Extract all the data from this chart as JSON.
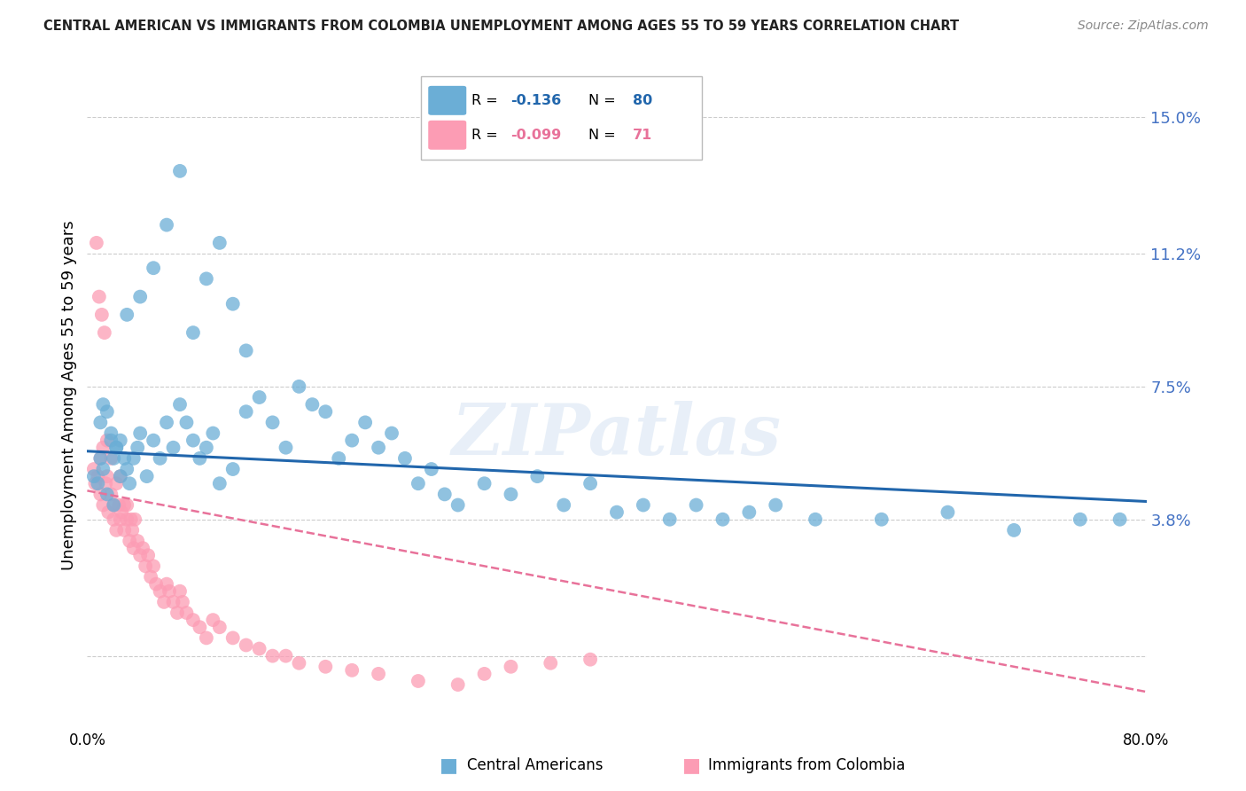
{
  "title": "CENTRAL AMERICAN VS IMMIGRANTS FROM COLOMBIA UNEMPLOYMENT AMONG AGES 55 TO 59 YEARS CORRELATION CHART",
  "source": "Source: ZipAtlas.com",
  "ylabel": "Unemployment Among Ages 55 to 59 years",
  "xlim": [
    0.0,
    0.8
  ],
  "ylim": [
    -0.02,
    0.165
  ],
  "ytick_vals": [
    0.0,
    0.038,
    0.075,
    0.112,
    0.15
  ],
  "ytick_labels": [
    "",
    "3.8%",
    "7.5%",
    "11.2%",
    "15.0%"
  ],
  "xtick_vals": [
    0.0,
    0.1,
    0.2,
    0.3,
    0.4,
    0.5,
    0.6,
    0.7,
    0.8
  ],
  "xtick_labels": [
    "0.0%",
    "",
    "",
    "",
    "",
    "",
    "",
    "",
    "80.0%"
  ],
  "watermark": "ZIPatlas",
  "blue_color": "#6baed6",
  "pink_color": "#fc9cb4",
  "blue_line_color": "#2166ac",
  "pink_line_color": "#e8729a",
  "title_color": "#222222",
  "source_color": "#888888",
  "tick_color": "#4472C4",
  "grid_color": "#cccccc",
  "blue_N": 80,
  "pink_N": 71,
  "blue_line_x0": 0.0,
  "blue_line_y0": 0.057,
  "blue_line_x1": 0.8,
  "blue_line_y1": 0.043,
  "pink_line_x0": 0.0,
  "pink_line_y0": 0.046,
  "pink_line_x1": 0.8,
  "pink_line_y1": -0.01,
  "blue_scatter_x": [
    0.005,
    0.008,
    0.01,
    0.012,
    0.015,
    0.018,
    0.02,
    0.022,
    0.025,
    0.028,
    0.01,
    0.012,
    0.015,
    0.018,
    0.02,
    0.022,
    0.025,
    0.03,
    0.032,
    0.035,
    0.038,
    0.04,
    0.045,
    0.05,
    0.055,
    0.06,
    0.065,
    0.07,
    0.075,
    0.08,
    0.085,
    0.09,
    0.095,
    0.1,
    0.11,
    0.12,
    0.13,
    0.14,
    0.15,
    0.16,
    0.17,
    0.18,
    0.19,
    0.2,
    0.21,
    0.22,
    0.23,
    0.24,
    0.25,
    0.26,
    0.27,
    0.28,
    0.3,
    0.32,
    0.34,
    0.36,
    0.38,
    0.4,
    0.42,
    0.44,
    0.46,
    0.48,
    0.5,
    0.52,
    0.55,
    0.6,
    0.65,
    0.7,
    0.75,
    0.78,
    0.03,
    0.04,
    0.05,
    0.06,
    0.07,
    0.08,
    0.09,
    0.1,
    0.11,
    0.12
  ],
  "blue_scatter_y": [
    0.05,
    0.048,
    0.055,
    0.052,
    0.045,
    0.06,
    0.042,
    0.058,
    0.05,
    0.055,
    0.065,
    0.07,
    0.068,
    0.062,
    0.055,
    0.058,
    0.06,
    0.052,
    0.048,
    0.055,
    0.058,
    0.062,
    0.05,
    0.06,
    0.055,
    0.065,
    0.058,
    0.07,
    0.065,
    0.06,
    0.055,
    0.058,
    0.062,
    0.048,
    0.052,
    0.068,
    0.072,
    0.065,
    0.058,
    0.075,
    0.07,
    0.068,
    0.055,
    0.06,
    0.065,
    0.058,
    0.062,
    0.055,
    0.048,
    0.052,
    0.045,
    0.042,
    0.048,
    0.045,
    0.05,
    0.042,
    0.048,
    0.04,
    0.042,
    0.038,
    0.042,
    0.038,
    0.04,
    0.042,
    0.038,
    0.038,
    0.04,
    0.035,
    0.038,
    0.038,
    0.095,
    0.1,
    0.108,
    0.12,
    0.135,
    0.09,
    0.105,
    0.115,
    0.098,
    0.085
  ],
  "pink_scatter_x": [
    0.005,
    0.006,
    0.008,
    0.01,
    0.01,
    0.012,
    0.012,
    0.014,
    0.015,
    0.015,
    0.016,
    0.018,
    0.018,
    0.02,
    0.02,
    0.022,
    0.022,
    0.024,
    0.025,
    0.025,
    0.026,
    0.028,
    0.028,
    0.03,
    0.03,
    0.032,
    0.033,
    0.034,
    0.035,
    0.036,
    0.038,
    0.04,
    0.042,
    0.044,
    0.046,
    0.048,
    0.05,
    0.052,
    0.055,
    0.058,
    0.06,
    0.062,
    0.065,
    0.068,
    0.07,
    0.072,
    0.075,
    0.08,
    0.085,
    0.09,
    0.095,
    0.1,
    0.11,
    0.12,
    0.13,
    0.14,
    0.15,
    0.16,
    0.18,
    0.2,
    0.22,
    0.25,
    0.28,
    0.3,
    0.32,
    0.35,
    0.38,
    0.007,
    0.009,
    0.011,
    0.013
  ],
  "pink_scatter_y": [
    0.052,
    0.048,
    0.05,
    0.045,
    0.055,
    0.042,
    0.058,
    0.048,
    0.05,
    0.06,
    0.04,
    0.045,
    0.055,
    0.038,
    0.042,
    0.048,
    0.035,
    0.042,
    0.038,
    0.05,
    0.04,
    0.042,
    0.035,
    0.038,
    0.042,
    0.032,
    0.038,
    0.035,
    0.03,
    0.038,
    0.032,
    0.028,
    0.03,
    0.025,
    0.028,
    0.022,
    0.025,
    0.02,
    0.018,
    0.015,
    0.02,
    0.018,
    0.015,
    0.012,
    0.018,
    0.015,
    0.012,
    0.01,
    0.008,
    0.005,
    0.01,
    0.008,
    0.005,
    0.003,
    0.002,
    0.0,
    0.0,
    -0.002,
    -0.003,
    -0.004,
    -0.005,
    -0.007,
    -0.008,
    -0.005,
    -0.003,
    -0.002,
    -0.001,
    0.115,
    0.1,
    0.095,
    0.09
  ]
}
